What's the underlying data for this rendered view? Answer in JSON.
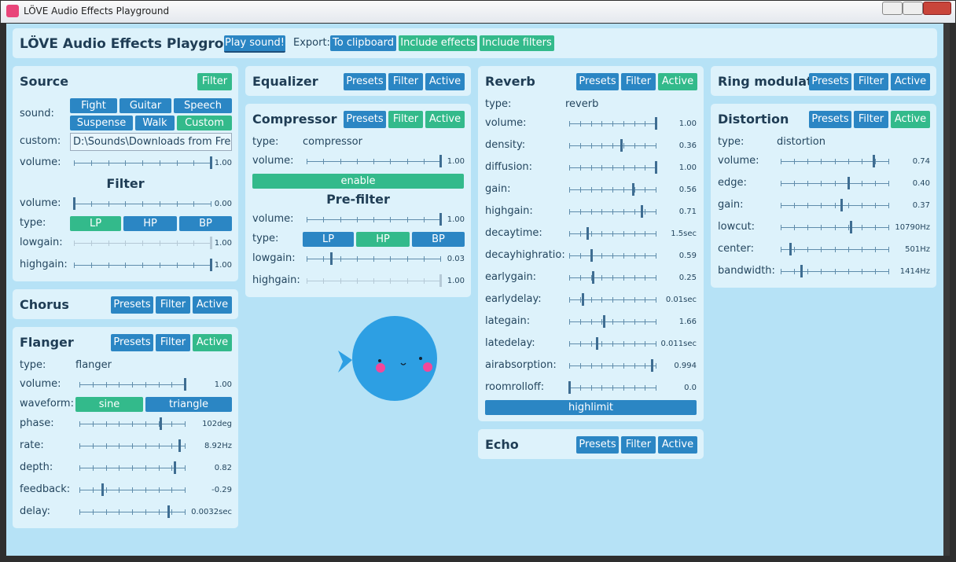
{
  "window": {
    "title": "LÖVE Audio Effects Playground"
  },
  "toolbar": {
    "title": "LÖVE Audio Effects Playground",
    "play": "Play sound!",
    "export": "Export:",
    "buttons": [
      {
        "label": "To clipboard",
        "color": "#2b86c4"
      },
      {
        "label": "Include effects",
        "color": "#33ba8b"
      },
      {
        "label": "Include filters",
        "color": "#33ba8b"
      }
    ]
  },
  "panels": [
    {
      "title": "Source",
      "buttons": [
        {
          "label": "Filter",
          "color": "#33ba8b"
        }
      ],
      "rows": [
        {
          "label": "sound:",
          "buttons": [
            {
              "label": "Fight",
              "color": "#2b86c4"
            },
            {
              "label": "Guitar",
              "color": "#2b86c4"
            },
            {
              "label": "Speech",
              "color": "#2b86c4"
            },
            {
              "label": "Suspense",
              "color": "#2b86c4"
            },
            {
              "label": "Walk",
              "color": "#2b86c4"
            },
            {
              "label": "Custom",
              "color": "#33ba8b"
            }
          ]
        },
        {
          "label": "custom:",
          "input": "D:\\Sounds\\Downloads from Free"
        },
        {
          "label": "volume:",
          "value": "1.00"
        },
        {
          "heading": "Filter"
        },
        {
          "label": "volume:",
          "value": "0.00"
        },
        {
          "label": "type:",
          "buttons": [
            {
              "label": "LP",
              "color": "#33ba8b"
            },
            {
              "label": "HP",
              "color": "#2b86c4"
            },
            {
              "label": "BP",
              "color": "#2b86c4"
            }
          ]
        },
        {
          "label": "lowgain:",
          "value": "1.00"
        },
        {
          "label": "highgain:",
          "value": "1.00"
        }
      ]
    },
    {
      "title": "Chorus",
      "buttons": [
        {
          "label": "Presets",
          "color": "#2b86c4"
        },
        {
          "label": "Filter",
          "color": "#2b86c4"
        },
        {
          "label": "Active",
          "color": "#2b86c4"
        }
      ],
      "rows": []
    },
    {
      "title": "Flanger",
      "buttons": [
        {
          "label": "Presets",
          "color": "#2b86c4"
        },
        {
          "label": "Filter",
          "color": "#2b86c4"
        },
        {
          "label": "Active",
          "color": "#33ba8b"
        }
      ],
      "rows": [
        {
          "label": "type:",
          "value": "flanger"
        },
        {
          "label": "volume:",
          "value": "1.00"
        },
        {
          "label": "waveform:",
          "buttons": [
            {
              "label": "sine",
              "color": "#33ba8b"
            },
            {
              "label": "triangle",
              "color": "#2b86c4"
            }
          ]
        },
        {
          "label": "phase:",
          "value": "102deg"
        },
        {
          "label": "rate:",
          "value": "8.92Hz"
        },
        {
          "label": "depth:",
          "value": "0.82"
        },
        {
          "label": "feedback:",
          "value": "-0.29"
        },
        {
          "label": "delay:",
          "value": "0.0032sec"
        }
      ]
    },
    {
      "title": "Equalizer",
      "buttons": [
        {
          "label": "Presets",
          "color": "#2b86c4"
        },
        {
          "label": "Filter",
          "color": "#2b86c4"
        },
        {
          "label": "Active",
          "color": "#2b86c4"
        }
      ],
      "rows": []
    },
    {
      "title": "Compressor",
      "buttons": [
        {
          "label": "Presets",
          "color": "#2b86c4"
        },
        {
          "label": "Filter",
          "color": "#33ba8b"
        },
        {
          "label": "Active",
          "color": "#33ba8b"
        }
      ],
      "rows": [
        {
          "label": "type:",
          "value": "compressor"
        },
        {
          "label": "volume:",
          "value": "1.00"
        },
        {
          "button": {
            "label": "enable",
            "color": "#33ba8b"
          }
        },
        {
          "heading": "Pre-filter"
        },
        {
          "label": "volume:",
          "value": "1.00"
        },
        {
          "label": "type:",
          "buttons": [
            {
              "label": "LP",
              "color": "#2b86c4"
            },
            {
              "label": "HP",
              "color": "#33ba8b"
            },
            {
              "label": "BP",
              "color": "#2b86c4"
            }
          ]
        },
        {
          "label": "lowgain:",
          "value": "0.03"
        },
        {
          "label": "highgain:",
          "value": "1.00"
        }
      ]
    },
    {
      "title": "Reverb",
      "buttons": [
        {
          "label": "Presets",
          "color": "#2b86c4"
        },
        {
          "label": "Filter",
          "color": "#2b86c4"
        },
        {
          "label": "Active",
          "color": "#33ba8b"
        }
      ],
      "rows": [
        {
          "label": "type:",
          "value": "reverb"
        },
        {
          "label": "volume:",
          "value": "1.00"
        },
        {
          "label": "density:",
          "value": "0.36"
        },
        {
          "label": "diffusion:",
          "value": "1.00"
        },
        {
          "label": "gain:",
          "value": "0.56"
        },
        {
          "label": "highgain:",
          "value": "0.71"
        },
        {
          "label": "decaytime:",
          "value": "1.5sec"
        },
        {
          "label": "decayhighratio:",
          "value": "0.59"
        },
        {
          "label": "earlygain:",
          "value": "0.25"
        },
        {
          "label": "earlydelay:",
          "value": "0.01sec"
        },
        {
          "label": "lategain:",
          "value": "1.66"
        },
        {
          "label": "latedelay:",
          "value": "0.011sec"
        },
        {
          "label": "airabsorption:",
          "value": "0.994"
        },
        {
          "label": "roomrolloff:",
          "value": "0.0"
        },
        {
          "button": {
            "label": "highlimit",
            "color": "#2b86c4"
          }
        }
      ]
    },
    {
      "title": "Echo",
      "buttons": [
        {
          "label": "Presets",
          "color": "#2b86c4"
        },
        {
          "label": "Filter",
          "color": "#2b86c4"
        },
        {
          "label": "Active",
          "color": "#2b86c4"
        }
      ],
      "rows": []
    },
    {
      "title": "Ring modulator",
      "buttons": [
        {
          "label": "Presets",
          "color": "#2b86c4"
        },
        {
          "label": "Filter",
          "color": "#2b86c4"
        },
        {
          "label": "Active",
          "color": "#2b86c4"
        }
      ],
      "rows": []
    },
    {
      "title": "Distortion",
      "buttons": [
        {
          "label": "Presets",
          "color": "#2b86c4"
        },
        {
          "label": "Filter",
          "color": "#2b86c4"
        },
        {
          "label": "Active",
          "color": "#33ba8b"
        }
      ],
      "rows": [
        {
          "label": "type:",
          "value": "distortion"
        },
        {
          "label": "volume:",
          "value": "0.74"
        },
        {
          "label": "edge:",
          "value": "0.40"
        },
        {
          "label": "gain:",
          "value": "0.37"
        },
        {
          "label": "lowcut:",
          "value": "10790Hz"
        },
        {
          "label": "center:",
          "value": "501Hz"
        },
        {
          "label": "bandwidth:",
          "value": "1414Hz"
        }
      ]
    }
  ]
}
